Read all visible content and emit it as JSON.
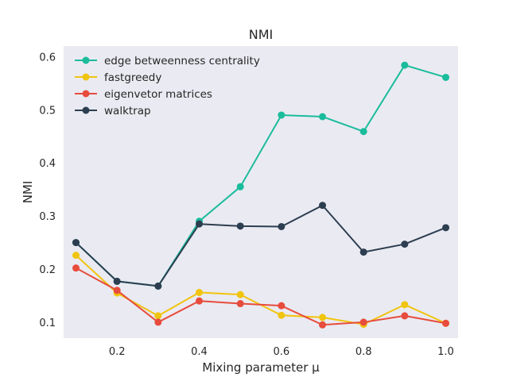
{
  "chart_data": {
    "type": "line",
    "title": "NMI",
    "xlabel": "Mixing parameter μ",
    "ylabel": "NMI",
    "xlim": [
      0.07,
      1.03
    ],
    "ylim": [
      0.07,
      0.62
    ],
    "xticks": [
      0.2,
      0.4,
      0.6,
      0.8,
      1.0
    ],
    "xtick_labels": [
      "0.2",
      "0.4",
      "0.6",
      "0.8",
      "1.0"
    ],
    "yticks": [
      0.1,
      0.2,
      0.3,
      0.4,
      0.5,
      0.6
    ],
    "ytick_labels": [
      "0.1",
      "0.2",
      "0.3",
      "0.4",
      "0.5",
      "0.6"
    ],
    "grid": false,
    "legend_position": "top-left",
    "background": "#eaeaf2",
    "x": [
      0.1,
      0.2,
      0.3,
      0.4,
      0.5,
      0.6,
      0.7,
      0.8,
      0.9,
      1.0
    ],
    "series": [
      {
        "name": "edge betweenness centrality",
        "color": "#1abc9c",
        "values": [
          0.25,
          0.177,
          0.168,
          0.29,
          0.355,
          0.49,
          0.487,
          0.459,
          0.584,
          0.561
        ]
      },
      {
        "name": "fastgreedy",
        "color": "#f1c40f",
        "values": [
          0.226,
          0.155,
          0.112,
          0.156,
          0.152,
          0.113,
          0.109,
          0.096,
          0.133,
          0.098
        ]
      },
      {
        "name": "eigenvetor matrices",
        "color": "#e74c3c",
        "values": [
          0.202,
          0.16,
          0.1,
          0.14,
          0.135,
          0.131,
          0.095,
          0.1,
          0.112,
          0.098
        ]
      },
      {
        "name": "walktrap",
        "color": "#2c3e50",
        "values": [
          0.25,
          0.177,
          0.168,
          0.285,
          0.281,
          0.28,
          0.32,
          0.232,
          0.247,
          0.278
        ]
      }
    ]
  }
}
